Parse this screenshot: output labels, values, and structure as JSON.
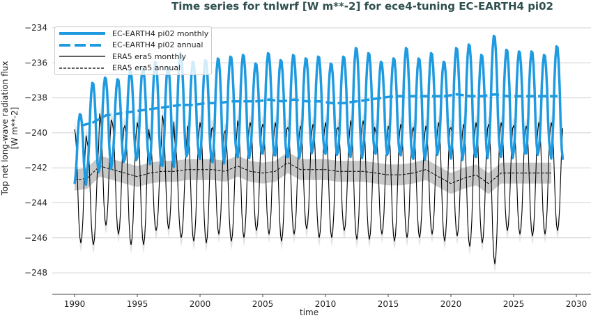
{
  "chart_data": {
    "type": "line",
    "title": "Time series for tnlwrf [W m**-2] for ece4-tuning EC-EARTH4 pi02",
    "xlabel": "time",
    "ylabel": "Top net long-wave radiation flux [W m**-2]",
    "xlim": [
      1988,
      2031
    ],
    "ylim": [
      -248.9,
      -233.7
    ],
    "xticks": [
      1990,
      1995,
      2000,
      2005,
      2010,
      2015,
      2020,
      2025,
      2030
    ],
    "yticks": [
      -234,
      -236,
      -238,
      -240,
      -242,
      -244,
      -246,
      -248
    ],
    "grid": "horizontal",
    "legend_position": "top-left",
    "years": [
      1990,
      1991,
      1992,
      1993,
      1994,
      1995,
      1996,
      1997,
      1998,
      1999,
      2000,
      2001,
      2002,
      2003,
      2004,
      2005,
      2006,
      2007,
      2008,
      2009,
      2010,
      2011,
      2012,
      2013,
      2014,
      2015,
      2016,
      2017,
      2018,
      2019,
      2020,
      2021,
      2022,
      2023,
      2024,
      2025,
      2026,
      2027,
      2028
    ],
    "series": [
      {
        "name": "EC-EARTH4 pi02 monthly",
        "color": "#1e9ae0",
        "style": "solid-thick",
        "yearly_max": [
          -238.9,
          -237.1,
          -236.8,
          -236.9,
          -236.4,
          -236.3,
          -235.9,
          -236.2,
          -235.4,
          -235.9,
          -235.8,
          -235.7,
          -235.6,
          -235.5,
          -236.0,
          -235.4,
          -235.8,
          -235.5,
          -235.7,
          -235.6,
          -236.0,
          -235.6,
          -235.1,
          -235.4,
          -235.9,
          -235.7,
          -235.1,
          -235.7,
          -235.4,
          -235.9,
          -235.1,
          -234.9,
          -235.5,
          -234.4,
          -235.2,
          -235.3,
          -235.3,
          -235.5,
          -235.0
        ],
        "yearly_min": [
          -243.0,
          -242.3,
          -242.1,
          -241.7,
          -241.6,
          -241.5,
          -241.9,
          -242.0,
          -241.4,
          -241.3,
          -241.6,
          -241.8,
          -241.2,
          -241.5,
          -241.2,
          -241.3,
          -241.4,
          -241.5,
          -241.2,
          -241.0,
          -241.3,
          -241.2,
          -241.5,
          -241.1,
          -241.3,
          -241.2,
          -241.4,
          -241.6,
          -241.3,
          -241.1,
          -241.6,
          -241.3,
          -241.5,
          -241.1,
          -241.5,
          -241.2,
          -241.3,
          -241.1,
          -241.6
        ]
      },
      {
        "name": "EC-EARTH4 pi02 annual",
        "color": "#1e9ae0",
        "style": "dashed-thick",
        "values": [
          -239.6,
          -239.4,
          -239.0,
          -238.9,
          -238.8,
          -238.7,
          -238.6,
          -238.5,
          -238.4,
          -238.4,
          -238.3,
          -238.3,
          -238.2,
          -238.2,
          -238.2,
          -238.1,
          -238.2,
          -238.1,
          -238.2,
          -238.2,
          -238.3,
          -238.3,
          -238.2,
          -238.1,
          -238.0,
          -237.9,
          -237.9,
          -237.9,
          -237.9,
          -237.9,
          -237.8,
          -237.9,
          -237.9,
          -237.8,
          -237.9,
          -237.9,
          -237.9,
          -237.9,
          -237.9
        ]
      },
      {
        "name": "ERA5 era5 monthly",
        "color": "#000000",
        "style": "solid-thin",
        "yearly_max": [
          -239.8,
          -240.5,
          -238.9,
          -239.4,
          -239.6,
          -239.4,
          -240.3,
          -239.0,
          -240.6,
          -239.6,
          -239.4,
          -239.7,
          -239.9,
          -239.3,
          -239.4,
          -239.5,
          -239.4,
          -239.7,
          -239.6,
          -239.5,
          -239.4,
          -239.7,
          -239.3,
          -239.3,
          -239.9,
          -239.6,
          -239.5,
          -239.7,
          -239.6,
          -239.4,
          -239.7,
          -239.5,
          -239.4,
          -239.5,
          -239.4,
          -239.6,
          -239.6,
          -239.4,
          -239.4
        ],
        "yearly_min": [
          -246.3,
          -246.4,
          -245.3,
          -245.8,
          -246.4,
          -246.4,
          -245.6,
          -245.5,
          -246.0,
          -246.2,
          -246.3,
          -245.8,
          -246.2,
          -246.0,
          -245.6,
          -245.8,
          -246.2,
          -245.8,
          -245.5,
          -246.0,
          -246.0,
          -245.6,
          -246.1,
          -246.1,
          -245.8,
          -246.2,
          -246.0,
          -246.0,
          -245.8,
          -246.2,
          -245.9,
          -246.5,
          -246.3,
          -247.5,
          -245.6,
          -245.8,
          -245.9,
          -245.8,
          -245.6
        ]
      },
      {
        "name": "ERA5 era5 annual",
        "color": "#000000",
        "style": "dashed-thin",
        "values": [
          -242.7,
          -242.6,
          -241.9,
          -242.1,
          -242.3,
          -242.5,
          -242.3,
          -242.2,
          -242.2,
          -242.1,
          -242.1,
          -242.1,
          -242.2,
          -241.9,
          -242.2,
          -242.3,
          -242.2,
          -241.7,
          -242.1,
          -242.1,
          -242.1,
          -242.2,
          -242.2,
          -242.2,
          -242.3,
          -242.4,
          -242.4,
          -242.3,
          -242.1,
          -242.5,
          -242.9,
          -242.6,
          -242.4,
          -242.9,
          -242.3,
          -242.3,
          -242.3,
          -242.3,
          -242.3
        ]
      }
    ]
  }
}
